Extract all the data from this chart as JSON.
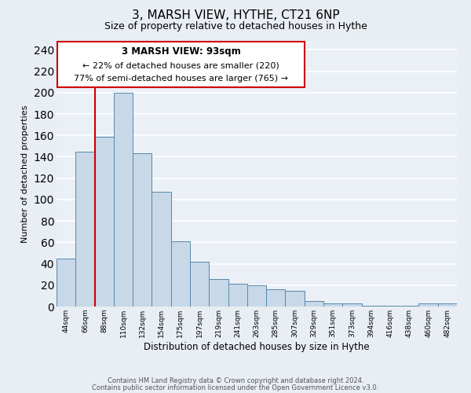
{
  "title": "3, MARSH VIEW, HYTHE, CT21 6NP",
  "subtitle": "Size of property relative to detached houses in Hythe",
  "xlabel": "Distribution of detached houses by size in Hythe",
  "ylabel": "Number of detached properties",
  "bar_color": "#c8d8e8",
  "bar_edge_color": "#5588aa",
  "background_color": "#e8eef4",
  "plot_bg_color": "#eaf0f6",
  "grid_color": "#ffffff",
  "annotation_box_color": "#ffffff",
  "annotation_border_color": "#cc0000",
  "vline_color": "#cc0000",
  "vline_bin_index": 2,
  "annotation_title": "3 MARSH VIEW: 93sqm",
  "annotation_line1": "← 22% of detached houses are smaller (220)",
  "annotation_line2": "77% of semi-detached houses are larger (765) →",
  "bin_labels": [
    "44sqm",
    "66sqm",
    "88sqm",
    "110sqm",
    "132sqm",
    "154sqm",
    "175sqm",
    "197sqm",
    "219sqm",
    "241sqm",
    "263sqm",
    "285sqm",
    "307sqm",
    "329sqm",
    "351sqm",
    "373sqm",
    "394sqm",
    "416sqm",
    "438sqm",
    "460sqm",
    "482sqm"
  ],
  "bar_heights": [
    45,
    145,
    159,
    200,
    143,
    107,
    61,
    42,
    26,
    21,
    20,
    16,
    15,
    5,
    3,
    3,
    1,
    1,
    1,
    3,
    3
  ],
  "ylim": [
    0,
    248
  ],
  "yticks": [
    0,
    20,
    40,
    60,
    80,
    100,
    120,
    140,
    160,
    180,
    200,
    220,
    240
  ],
  "footer_line1": "Contains HM Land Registry data © Crown copyright and database right 2024.",
  "footer_line2": "Contains public sector information licensed under the Open Government Licence v3.0."
}
